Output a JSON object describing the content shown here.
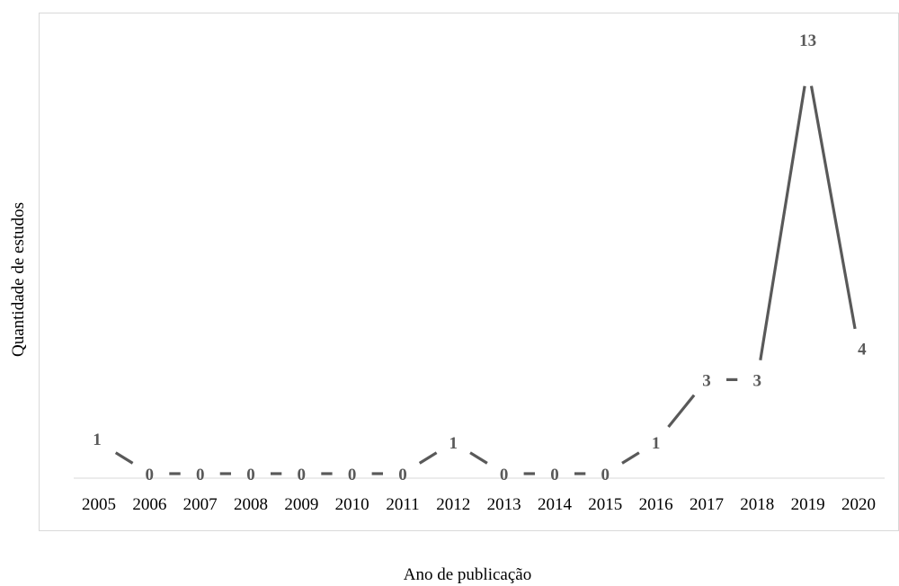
{
  "chart_data": {
    "type": "line",
    "title": "",
    "xlabel": "Ano de publicação",
    "ylabel": "Quantidade de estudos",
    "categories": [
      "2005",
      "2006",
      "2007",
      "2008",
      "2009",
      "2010",
      "2011",
      "2012",
      "2013",
      "2014",
      "2015",
      "2016",
      "2017",
      "2018",
      "2019",
      "2020"
    ],
    "series": [
      {
        "values": [
          1,
          0,
          0,
          0,
          0,
          0,
          0,
          1,
          0,
          0,
          0,
          1,
          3,
          3,
          13,
          4
        ]
      }
    ],
    "ylim": [
      0,
      13
    ],
    "grid": false,
    "legend": "none",
    "data_labels": true,
    "colors": {
      "line": "#595959",
      "axis": "#d9d9d9",
      "frame": "#d9d9d9",
      "text": "#000000"
    }
  }
}
